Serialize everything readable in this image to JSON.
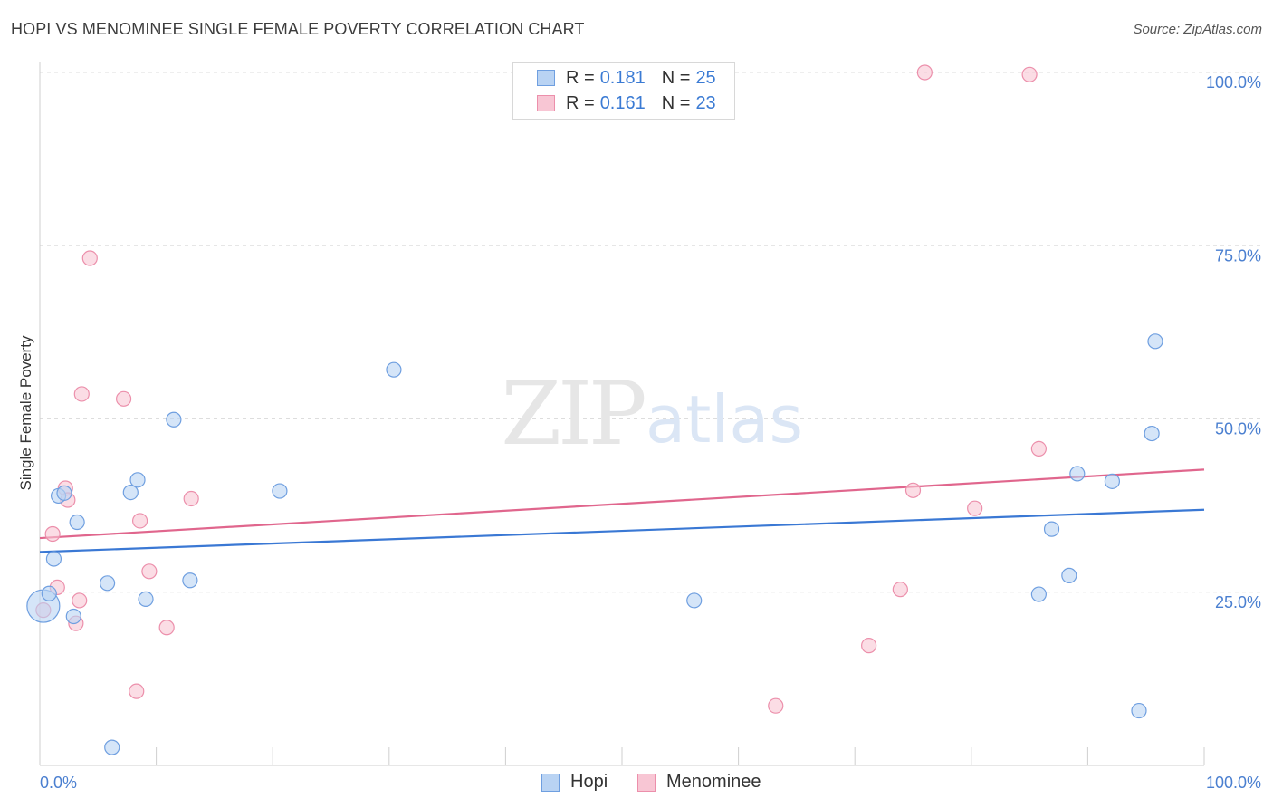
{
  "header": {
    "title": "HOPI VS MENOMINEE SINGLE FEMALE POVERTY CORRELATION CHART",
    "source": "Source: ZipAtlas.com"
  },
  "watermark": {
    "zip": "ZIP",
    "atlas": "atlas"
  },
  "legend": {
    "rows": [
      {
        "r_label": "R =",
        "r_value": "0.181",
        "n_label": "N =",
        "n_value": "25"
      },
      {
        "r_label": "R =",
        "r_value": "0.161",
        "n_label": "N =",
        "n_value": "23"
      }
    ],
    "bottom": [
      "Hopi",
      "Menominee"
    ]
  },
  "colors": {
    "hopi_fill": "#b9d3f3",
    "hopi_stroke": "#6f9fe0",
    "hopi_line": "#3a78d4",
    "menominee_fill": "#f8c6d4",
    "menominee_stroke": "#ec8fab",
    "menominee_line": "#e0668d",
    "tick": "#4a7fd0",
    "grid": "#dddddd"
  },
  "chart_data": {
    "type": "scatter",
    "title": "HOPI VS MENOMINEE SINGLE FEMALE POVERTY CORRELATION CHART",
    "xlabel": "",
    "ylabel": "Single Female Poverty",
    "xlim": [
      0,
      100
    ],
    "ylim": [
      0,
      100
    ],
    "x_tick_labels": [
      "0.0%",
      "100.0%"
    ],
    "y_ticks": [
      25,
      50,
      75,
      100
    ],
    "y_tick_labels": [
      "25.0%",
      "50.0%",
      "75.0%",
      "100.0%"
    ],
    "grid": true,
    "series": [
      {
        "name": "Hopi",
        "r": 0.181,
        "n": 25,
        "trend": {
          "x": [
            0,
            100
          ],
          "y": [
            30.8,
            36.9
          ]
        },
        "points": [
          {
            "x": 0.3,
            "y": 23.0,
            "big": true
          },
          {
            "x": 0.8,
            "y": 24.8
          },
          {
            "x": 1.2,
            "y": 29.8
          },
          {
            "x": 1.6,
            "y": 38.9
          },
          {
            "x": 2.1,
            "y": 39.3
          },
          {
            "x": 2.9,
            "y": 21.5
          },
          {
            "x": 3.2,
            "y": 35.1
          },
          {
            "x": 5.8,
            "y": 26.3
          },
          {
            "x": 6.2,
            "y": 2.6
          },
          {
            "x": 7.8,
            "y": 39.4
          },
          {
            "x": 8.4,
            "y": 41.2
          },
          {
            "x": 9.1,
            "y": 24.0
          },
          {
            "x": 11.5,
            "y": 49.9
          },
          {
            "x": 12.9,
            "y": 26.7
          },
          {
            "x": 20.6,
            "y": 39.6
          },
          {
            "x": 30.4,
            "y": 57.1
          },
          {
            "x": 56.2,
            "y": 23.8
          },
          {
            "x": 85.8,
            "y": 24.7
          },
          {
            "x": 86.9,
            "y": 34.1
          },
          {
            "x": 88.4,
            "y": 27.4
          },
          {
            "x": 89.1,
            "y": 42.1
          },
          {
            "x": 92.1,
            "y": 41.0
          },
          {
            "x": 94.4,
            "y": 7.9
          },
          {
            "x": 95.5,
            "y": 47.9
          },
          {
            "x": 95.8,
            "y": 61.2
          }
        ]
      },
      {
        "name": "Menominee",
        "r": 0.161,
        "n": 23,
        "trend": {
          "x": [
            0,
            100
          ],
          "y": [
            32.8,
            42.7
          ]
        },
        "points": [
          {
            "x": 0.3,
            "y": 22.4
          },
          {
            "x": 1.1,
            "y": 33.4
          },
          {
            "x": 1.5,
            "y": 25.7
          },
          {
            "x": 2.2,
            "y": 40.0
          },
          {
            "x": 2.4,
            "y": 38.3
          },
          {
            "x": 3.1,
            "y": 20.5
          },
          {
            "x": 3.4,
            "y": 23.8
          },
          {
            "x": 3.6,
            "y": 53.6
          },
          {
            "x": 4.3,
            "y": 73.2
          },
          {
            "x": 7.2,
            "y": 52.9
          },
          {
            "x": 8.3,
            "y": 10.7
          },
          {
            "x": 8.6,
            "y": 35.3
          },
          {
            "x": 9.4,
            "y": 28.0
          },
          {
            "x": 10.9,
            "y": 19.9
          },
          {
            "x": 13.0,
            "y": 38.5
          },
          {
            "x": 63.2,
            "y": 8.6
          },
          {
            "x": 71.2,
            "y": 17.3
          },
          {
            "x": 73.9,
            "y": 25.4
          },
          {
            "x": 75.0,
            "y": 39.7
          },
          {
            "x": 76.0,
            "y": 100.0
          },
          {
            "x": 80.3,
            "y": 37.1
          },
          {
            "x": 85.0,
            "y": 99.7
          },
          {
            "x": 85.8,
            "y": 45.7
          }
        ]
      }
    ]
  }
}
